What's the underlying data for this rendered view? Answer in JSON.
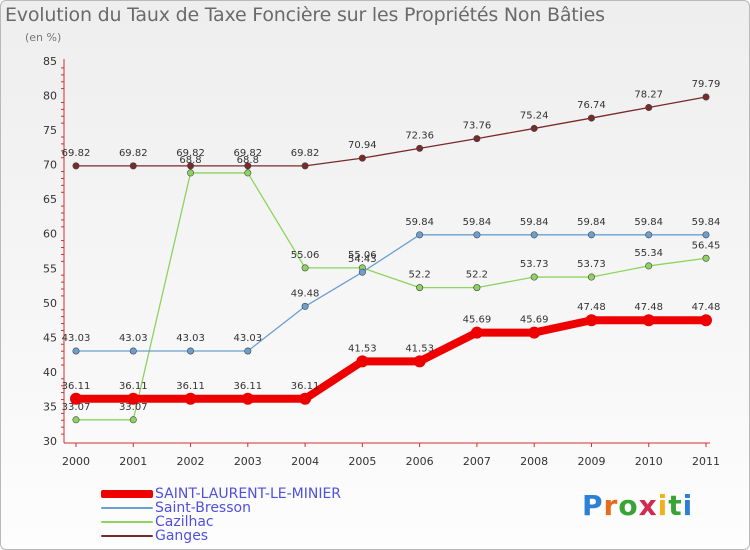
{
  "header": {
    "title": "Evolution du Taux de Taxe Foncière sur les Propriétés Non Bâties",
    "subtitle": "(en %)"
  },
  "logo": {
    "text": "Proxiti",
    "letter_colors": [
      "#2e7fd6",
      "#e86a1c",
      "#3aa335",
      "#d02a4e",
      "#f0b21c",
      "#3aa335",
      "#2e7fd6"
    ]
  },
  "chart_data": {
    "type": "line",
    "title": "Evolution du Taux de Taxe Foncière sur les Propriétés Non Bâties",
    "ylabel": "(en %)",
    "xlabel": "",
    "x": [
      "2000",
      "2001",
      "2002",
      "2003",
      "2004",
      "2005",
      "2006",
      "2007",
      "2008",
      "2009",
      "2010",
      "2011"
    ],
    "ylim": [
      30,
      85
    ],
    "yticks": [
      30,
      35,
      40,
      45,
      50,
      55,
      60,
      65,
      70,
      75,
      80,
      85
    ],
    "series": [
      {
        "name": "Ganges",
        "color": "#7a2a2a",
        "width": 1.3,
        "values": [
          69.82,
          69.82,
          69.82,
          69.82,
          69.82,
          70.94,
          72.36,
          73.76,
          75.24,
          76.74,
          78.27,
          79.79
        ],
        "labels": [
          "69.82",
          "69.82",
          "69.82",
          "69.82",
          "69.82",
          "70.94",
          "72.36",
          "73.76",
          "75.24",
          "76.74",
          "78.27",
          "79.79"
        ]
      },
      {
        "name": "Cazilhac",
        "color": "#8dd35f",
        "width": 1.3,
        "values": [
          33.07,
          33.07,
          68.8,
          68.8,
          55.06,
          55.06,
          52.2,
          52.2,
          53.73,
          53.73,
          55.34,
          56.45
        ],
        "labels": [
          "33.07",
          "33.07",
          "68.8",
          "68.8",
          "55.06",
          "55.06",
          "52.2",
          "52.2",
          "53.73",
          "53.73",
          "55.34",
          "56.45"
        ]
      },
      {
        "name": "Saint-Bresson",
        "color": "#6a9fd0",
        "width": 1.3,
        "values": [
          43.03,
          43.03,
          43.03,
          43.03,
          49.48,
          54.43,
          59.84,
          59.84,
          59.84,
          59.84,
          59.84,
          59.84
        ],
        "labels": [
          "43.03",
          "43.03",
          "43.03",
          "43.03",
          "49.48",
          "54.43",
          "59.84",
          "59.84",
          "59.84",
          "59.84",
          "59.84",
          "59.84"
        ]
      },
      {
        "name": "SAINT-LAURENT-LE-MINIER",
        "color": "#ee0000",
        "width": 8,
        "values": [
          36.11,
          36.11,
          36.11,
          36.11,
          36.11,
          41.53,
          41.53,
          45.69,
          45.69,
          47.48,
          47.48,
          47.48
        ],
        "labels": [
          "36.11",
          "36.11",
          "36.11",
          "36.11",
          "36.11",
          "41.53",
          "41.53",
          "45.69",
          "45.69",
          "47.48",
          "47.48",
          "47.48"
        ]
      }
    ],
    "legend_order": [
      "SAINT-LAURENT-LE-MINIER",
      "Saint-Bresson",
      "Cazilhac",
      "Ganges"
    ],
    "grid": false,
    "legend_position": "bottom-left"
  }
}
